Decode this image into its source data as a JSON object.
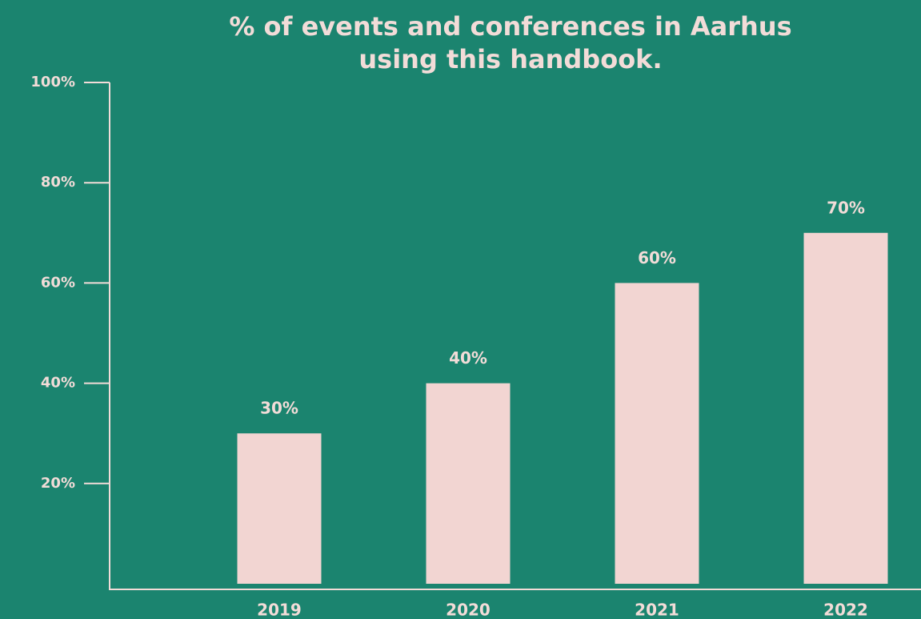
{
  "chart_data": {
    "type": "bar",
    "title": [
      "% of events and conferences in Aarhus",
      "using this handbook."
    ],
    "categories": [
      "2019",
      "2020",
      "2021",
      "2022"
    ],
    "values": [
      30,
      40,
      60,
      70
    ],
    "value_labels": [
      "30%",
      "40%",
      "60%",
      "70%"
    ],
    "color": "#f2d5d2",
    "ylim": [
      0,
      100
    ],
    "yticks": [
      {
        "value": 20,
        "label": "20%"
      },
      {
        "value": 40,
        "label": "40%"
      },
      {
        "value": 60,
        "label": "60%"
      },
      {
        "value": 80,
        "label": "80%"
      },
      {
        "value": 100,
        "label": "100%"
      }
    ]
  }
}
